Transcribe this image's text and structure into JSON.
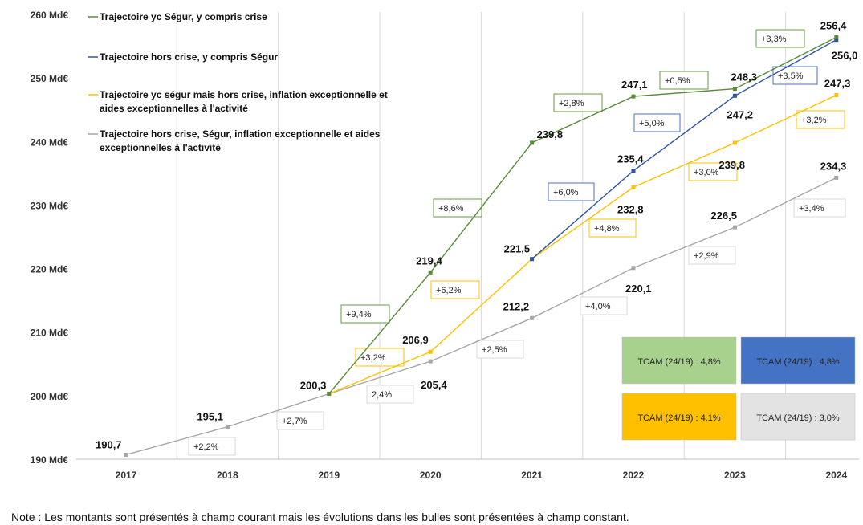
{
  "chart_data": {
    "type": "line",
    "title": "",
    "ylabel": "",
    "xlabel": "",
    "x": [
      2017,
      2018,
      2019,
      2020,
      2021,
      2022,
      2023,
      2024
    ],
    "ylim": [
      190,
      260
    ],
    "yticks": [
      "190 Md€",
      "200 Md€",
      "210 Md€",
      "220 Md€",
      "230 Md€",
      "240 Md€",
      "250 Md€",
      "260 Md€"
    ],
    "ytick_values": [
      190,
      200,
      210,
      220,
      230,
      240,
      250,
      260
    ],
    "legend_position": "top-left",
    "series": [
      {
        "name": "Trajectoire yc  Ségur, y compris crise",
        "color": "#5a8a3a",
        "marker": "triangle",
        "values": [
          null,
          null,
          200.3,
          219.4,
          239.8,
          247.1,
          248.3,
          256.4
        ],
        "labels": [
          null,
          null,
          null,
          "219,4",
          "239,8",
          "247,1",
          "248,3",
          "256,4"
        ],
        "bubbles": [
          "+9,4%",
          "+8,6%",
          "+2,8%",
          "+0,5%",
          "+3,3%"
        ],
        "bubble_border": "#6a9a45"
      },
      {
        "name": "Trajectoire hors crise,  y compris  Ségur",
        "color": "#2f55a4",
        "marker": "square",
        "values": [
          null,
          null,
          null,
          null,
          221.5,
          235.4,
          247.2,
          256.0
        ],
        "labels": [
          null,
          null,
          null,
          null,
          null,
          "235,4",
          "247,2",
          "256,0"
        ],
        "bubbles": [
          "+6,0%",
          "+5,0%",
          "+3,5%"
        ],
        "bubble_border": "#4a72c0"
      },
      {
        "name": "Trajectoire yc ségur mais hors crise, inflation exceptionnelle et aides exceptionnelles à l'activité",
        "color": "#ffc000",
        "marker": "x",
        "values": [
          null,
          null,
          200.3,
          206.9,
          221.5,
          232.8,
          239.8,
          247.3
        ],
        "labels": [
          null,
          null,
          null,
          "206,9",
          "221,5",
          "232,8",
          "239,8",
          "247,3"
        ],
        "bubbles": [
          "+3,2%",
          "+6,2%",
          "+4,8%",
          "+3,0%",
          "+3,2%"
        ],
        "bubble_border": "#ffc000"
      },
      {
        "name": "Trajectoire hors crise, Ségur, inflation exceptionnelle et aides exceptionnelles à l'activité",
        "color": "#a6a6a6",
        "marker": "circle",
        "values": [
          190.7,
          195.1,
          200.3,
          205.4,
          212.2,
          220.1,
          226.5,
          234.3
        ],
        "labels": [
          "190,7",
          "195,1",
          "200,3",
          "205,4",
          "212,2",
          "220,1",
          "226,5",
          "234,3"
        ],
        "bubbles": [
          "+2,2%",
          "+2,7%",
          "2,4%",
          "+2,5%",
          "+4,0%",
          "+2,9%",
          "+3,4%"
        ],
        "bubble_border": "#d9d9d9"
      }
    ],
    "tcam": [
      {
        "label": "TCAM (24/19) : 4,8%",
        "color": "#a9d18e"
      },
      {
        "label": "TCAM (24/19) : 4,8%",
        "color": "#4472c4"
      },
      {
        "label": "TCAM (24/19) : 4,1%",
        "color": "#ffc000"
      },
      {
        "label": "TCAM (24/19) : 3,0%",
        "color": "#e3e3e3"
      }
    ]
  },
  "note": "Note : Les montants sont présentés à champ courant mais les évolutions dans les bulles sont présentées à champ constant."
}
